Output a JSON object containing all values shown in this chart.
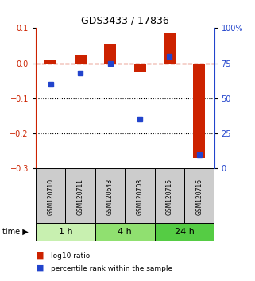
{
  "title": "GDS3433 / 17836",
  "samples": [
    "GSM120710",
    "GSM120711",
    "GSM120648",
    "GSM120708",
    "GSM120715",
    "GSM120716"
  ],
  "log10_ratio": [
    0.01,
    0.025,
    0.055,
    -0.025,
    0.085,
    -0.27
  ],
  "percentile_rank": [
    60,
    68,
    75,
    35,
    80,
    10
  ],
  "groups": [
    {
      "label": "1 h",
      "start": 0,
      "end": 2,
      "color": "#c8f0b0"
    },
    {
      "label": "4 h",
      "start": 2,
      "end": 4,
      "color": "#90e070"
    },
    {
      "label": "24 h",
      "start": 4,
      "end": 6,
      "color": "#55cc44"
    }
  ],
  "bar_color": "#cc2200",
  "dot_color": "#2244cc",
  "ref_line_color": "#cc2200",
  "ylim_left": [
    -0.3,
    0.1
  ],
  "ylim_right": [
    0,
    100
  ],
  "yticks_left": [
    -0.3,
    -0.2,
    -0.1,
    0.0,
    0.1
  ],
  "yticks_right": [
    0,
    25,
    50,
    75,
    100
  ],
  "ytick_labels_right": [
    "0",
    "25",
    "50",
    "75",
    "100%"
  ],
  "dotted_lines": [
    -0.1,
    -0.2
  ],
  "background_color": "#ffffff",
  "sample_box_color": "#cccccc"
}
